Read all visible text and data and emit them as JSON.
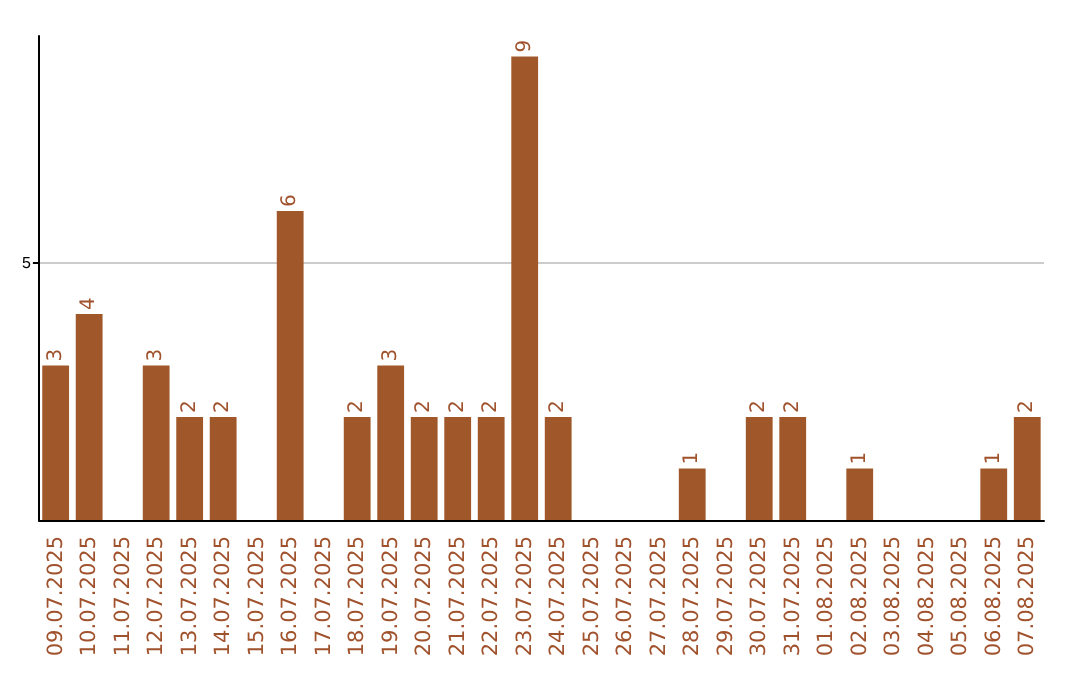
{
  "chart_data": {
    "type": "bar",
    "categories": [
      "09.07.2025",
      "10.07.2025",
      "11.07.2025",
      "12.07.2025",
      "13.07.2025",
      "14.07.2025",
      "15.07.2025",
      "16.07.2025",
      "17.07.2025",
      "18.07.2025",
      "19.07.2025",
      "20.07.2025",
      "21.07.2025",
      "22.07.2025",
      "23.07.2025",
      "24.07.2025",
      "25.07.2025",
      "26.07.2025",
      "27.07.2025",
      "28.07.2025",
      "29.07.2025",
      "30.07.2025",
      "31.07.2025",
      "01.08.2025",
      "02.08.2025",
      "03.08.2025",
      "04.08.2025",
      "05.08.2025",
      "06.08.2025",
      "07.08.2025"
    ],
    "values": [
      3,
      4,
      0,
      3,
      2,
      2,
      0,
      6,
      0,
      2,
      3,
      2,
      2,
      2,
      9,
      2,
      0,
      0,
      0,
      1,
      0,
      2,
      2,
      0,
      1,
      0,
      0,
      0,
      1,
      2
    ],
    "value_labels": [
      "3",
      "4",
      null,
      "3",
      "2",
      "2",
      null,
      "6",
      null,
      "2",
      "3",
      "2",
      "2",
      "2",
      "9",
      "2",
      null,
      null,
      null,
      "1",
      null,
      "2",
      "2",
      null,
      "1",
      null,
      null,
      null,
      "1",
      "2"
    ],
    "color": "#a0582a",
    "ylim": [
      0,
      9.4
    ],
    "yticks": [
      5
    ],
    "grid": "y"
  }
}
